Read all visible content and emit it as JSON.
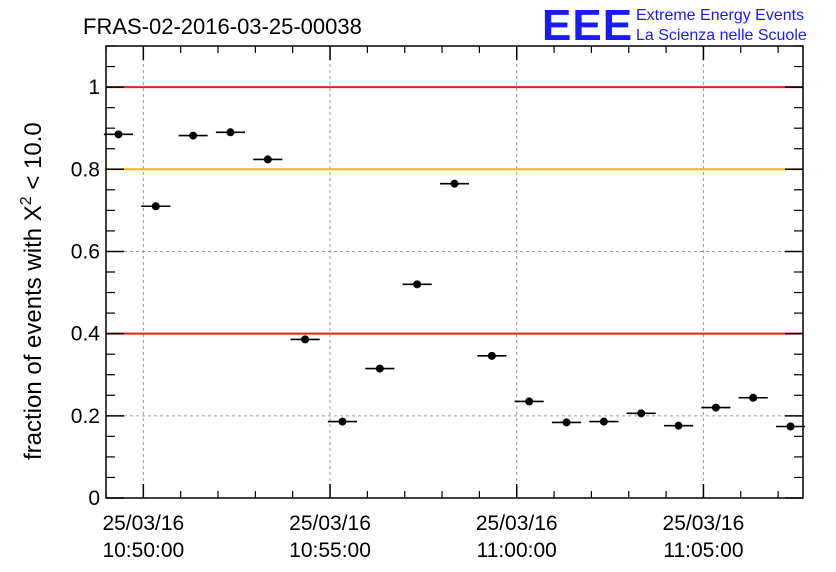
{
  "chart_data": {
    "type": "scatter",
    "title": "FRAS-02-2016-03-25-00038",
    "logo": {
      "mark": "EEE",
      "line1": "Extreme Energy Events",
      "line2": "La Scienza nelle Scuole"
    },
    "ylabel_main": "fraction of events with X",
    "ylabel_sup": "2",
    "ylabel_tail": " < 10.0",
    "xlabel": "",
    "ylim": [
      0,
      1.1
    ],
    "yticks": [
      {
        "value": 0,
        "label": "0"
      },
      {
        "value": 0.2,
        "label": "0.2"
      },
      {
        "value": 0.4,
        "label": "0.4"
      },
      {
        "value": 0.6,
        "label": "0.6"
      },
      {
        "value": 0.8,
        "label": "0.8"
      },
      {
        "value": 1,
        "label": "1"
      }
    ],
    "xlim": [
      "25/03/16 10:49:00",
      "25/03/16 11:07:40"
    ],
    "xticks": [
      {
        "value": "25/03/16 10:50:00",
        "line1": "25/03/16",
        "line2": "10:50:00"
      },
      {
        "value": "25/03/16 10:55:00",
        "line1": "25/03/16",
        "line2": "10:55:00"
      },
      {
        "value": "25/03/16 11:00:00",
        "line1": "25/03/16",
        "line2": "11:00:00"
      },
      {
        "value": "25/03/16 11:05:00",
        "line1": "25/03/16",
        "line2": "11:05:00"
      }
    ],
    "bin_width_seconds": 60,
    "grid": true,
    "reference_lines": [
      {
        "y": 1.0,
        "color": "#e8201a"
      },
      {
        "y": 0.8,
        "color": "#f5b800"
      },
      {
        "y": 0.4,
        "color": "#e8201a"
      }
    ],
    "series": [
      {
        "color": "#000000",
        "x": [
          "25/03/16 10:49:20",
          "25/03/16 10:50:20",
          "25/03/16 10:51:20",
          "25/03/16 10:52:20",
          "25/03/16 10:53:20",
          "25/03/16 10:54:20",
          "25/03/16 10:55:20",
          "25/03/16 10:56:20",
          "25/03/16 10:57:20",
          "25/03/16 10:58:20",
          "25/03/16 10:59:20",
          "25/03/16 11:00:20",
          "25/03/16 11:01:20",
          "25/03/16 11:02:20",
          "25/03/16 11:03:20",
          "25/03/16 11:04:20",
          "25/03/16 11:05:20",
          "25/03/16 11:06:20",
          "25/03/16 11:07:20"
        ],
        "y": [
          0.885,
          0.71,
          0.882,
          0.89,
          0.824,
          0.386,
          0.186,
          0.315,
          0.52,
          0.765,
          0.346,
          0.235,
          0.184,
          0.186,
          0.206,
          0.176,
          0.22,
          0.244,
          0.174
        ]
      }
    ]
  }
}
